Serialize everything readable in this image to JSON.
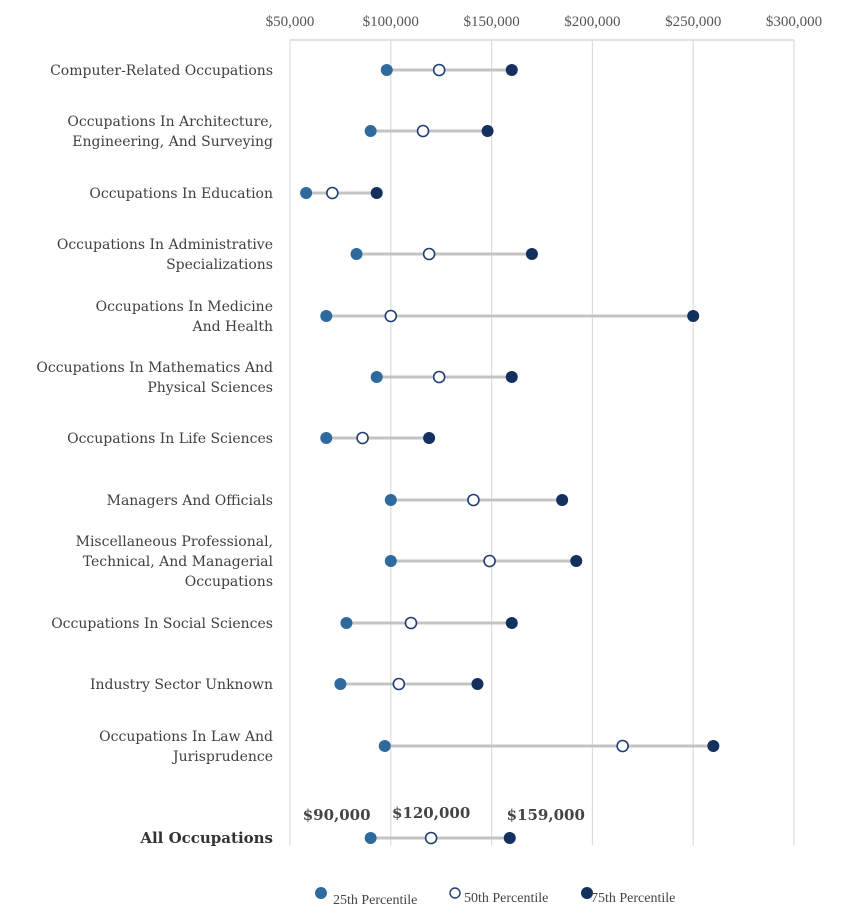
{
  "chart_data": {
    "type": "dot",
    "title": "",
    "xlabel": "",
    "ylabel": "",
    "xlim": [
      50000,
      300000
    ],
    "x_ticks": [
      50000,
      100000,
      150000,
      200000,
      250000,
      300000
    ],
    "x_tick_labels": [
      "$50,000",
      "$100,000",
      "$150,000",
      "$200,000",
      "$250,000",
      "$300,000"
    ],
    "grid": true,
    "legend_position": "bottom",
    "series": [
      {
        "name": "25th Percentile",
        "color": "#2e6a9e",
        "style": "filled"
      },
      {
        "name": "50th Percentile",
        "color": "#1f3f73",
        "style": "hollow"
      },
      {
        "name": "75th Percentile",
        "color": "#13305f",
        "style": "filled"
      }
    ],
    "categories": [
      {
        "label": [
          "Computer-Related Occupations"
        ],
        "p25": 98000,
        "p50": 124000,
        "p75": 160000
      },
      {
        "label": [
          "Occupations In Architecture,",
          "Engineering, And Surveying"
        ],
        "p25": 90000,
        "p50": 116000,
        "p75": 148000
      },
      {
        "label": [
          "Occupations In Education"
        ],
        "p25": 58000,
        "p50": 71000,
        "p75": 93000
      },
      {
        "label": [
          "Occupations In Administrative",
          "Specializations"
        ],
        "p25": 83000,
        "p50": 119000,
        "p75": 170000
      },
      {
        "label": [
          "Occupations In Medicine",
          "And Health"
        ],
        "p25": 68000,
        "p50": 100000,
        "p75": 250000
      },
      {
        "label": [
          "Occupations In Mathematics And",
          "Physical Sciences"
        ],
        "p25": 93000,
        "p50": 124000,
        "p75": 160000
      },
      {
        "label": [
          "Occupations In Life Sciences"
        ],
        "p25": 68000,
        "p50": 86000,
        "p75": 119000
      },
      {
        "label": [
          "Managers And Officials"
        ],
        "p25": 100000,
        "p50": 141000,
        "p75": 185000
      },
      {
        "label": [
          "Miscellaneous Professional,",
          "Technical, And Managerial",
          "Occupations"
        ],
        "p25": 100000,
        "p50": 149000,
        "p75": 192000
      },
      {
        "label": [
          "Occupations In Social Sciences"
        ],
        "p25": 78000,
        "p50": 110000,
        "p75": 160000
      },
      {
        "label": [
          "Industry Sector Unknown"
        ],
        "p25": 75000,
        "p50": 104000,
        "p75": 143000
      },
      {
        "label": [
          "Occupations In Law And",
          "Jurisprudence"
        ],
        "p25": 97000,
        "p50": 215000,
        "p75": 260000
      },
      {
        "label": [
          "All Occupations"
        ],
        "p25": 90000,
        "p50": 120000,
        "p75": 159000,
        "bold": true,
        "data_labels": [
          "$90,000",
          "$120,000",
          "$159,000"
        ]
      }
    ]
  }
}
